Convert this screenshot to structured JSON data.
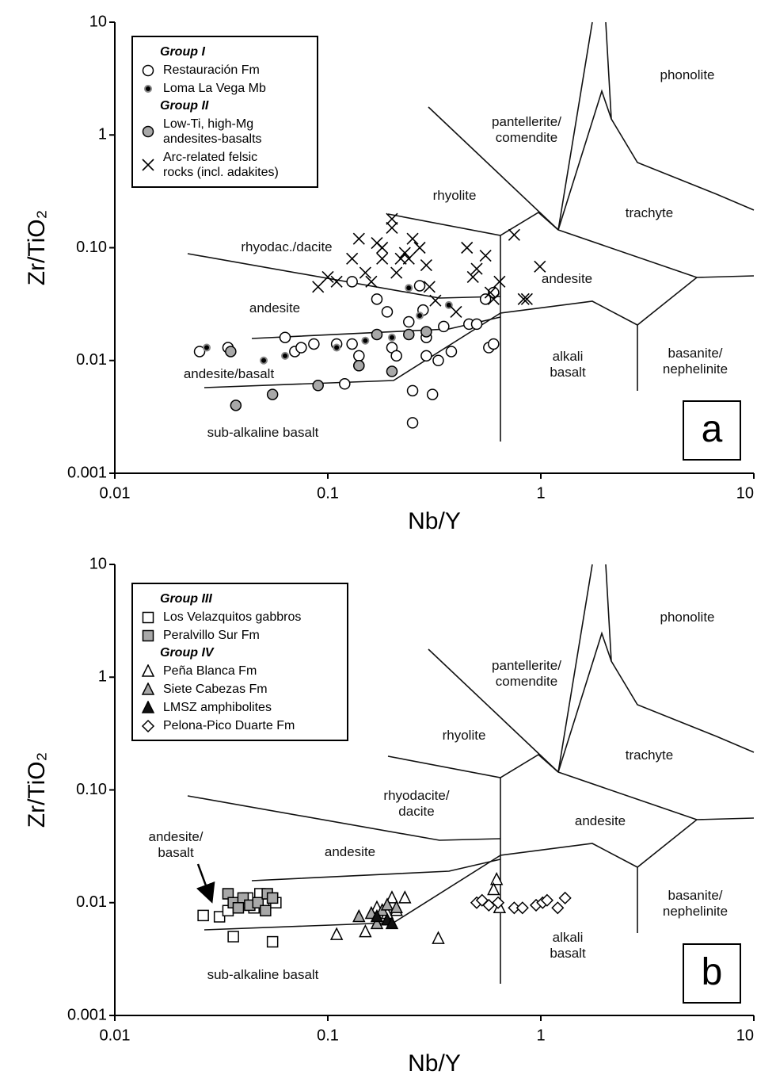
{
  "chart_data": [
    {
      "type": "scatter",
      "panel_label": "a",
      "xlabel": "Nb/Y",
      "ylabel": "Zr/TiO₂",
      "log_x": true,
      "log_y": true,
      "xlim": [
        0.01,
        10
      ],
      "ylim": [
        0.001,
        10
      ],
      "xticks": [
        0.01,
        0.1,
        1,
        10
      ],
      "yticks": [
        0.001,
        0.01,
        {
          "value": 0.1,
          "label": "0.10"
        },
        1,
        10
      ],
      "fields": [
        "phonolite",
        "pantellerite/\ncomendite",
        "rhyolite",
        "trachyte",
        "rhyodac./dacite",
        "andesite",
        "andesite",
        "alkali\nbasalt",
        "basanite/\nnephelinite",
        "andesite/basalt",
        "sub-alkaline basalt"
      ],
      "series": [
        {
          "name": "Restauración Fm",
          "group": "Group I",
          "marker": "circle",
          "color": "#ffffff",
          "x": [
            0.025,
            0.034,
            0.063,
            0.07,
            0.075,
            0.086,
            0.11,
            0.13,
            0.14,
            0.14,
            0.13,
            0.17,
            0.19,
            0.2,
            0.21,
            0.24,
            0.25,
            0.25,
            0.27,
            0.28,
            0.29,
            0.29,
            0.31,
            0.33,
            0.35,
            0.38,
            0.46,
            0.5,
            0.57,
            0.6,
            0.55,
            0.6,
            0.12
          ],
          "y": [
            0.012,
            0.013,
            0.016,
            0.012,
            0.013,
            0.014,
            0.014,
            0.014,
            0.011,
            0.009,
            0.05,
            0.035,
            0.027,
            0.013,
            0.011,
            0.022,
            0.0054,
            0.0028,
            0.046,
            0.028,
            0.016,
            0.011,
            0.005,
            0.01,
            0.02,
            0.012,
            0.021,
            0.021,
            0.013,
            0.014,
            0.035,
            0.04,
            0.0062
          ]
        },
        {
          "name": "Loma La Vega Mb",
          "group": "Group I",
          "marker": "dot",
          "color": "#000000",
          "x": [
            0.027,
            0.05,
            0.063,
            0.11,
            0.15,
            0.24,
            0.27,
            0.37,
            0.2
          ],
          "y": [
            0.013,
            0.01,
            0.011,
            0.013,
            0.015,
            0.044,
            0.025,
            0.031,
            0.016
          ]
        },
        {
          "name": "Low-Ti, high-Mg\nandesites-basalts",
          "group": "Group II",
          "marker": "circle",
          "color": "#a8a8a8",
          "x": [
            0.037,
            0.055,
            0.09,
            0.035,
            0.14,
            0.17,
            0.24,
            0.2,
            0.29
          ],
          "y": [
            0.004,
            0.005,
            0.006,
            0.012,
            0.009,
            0.017,
            0.017,
            0.008,
            0.018
          ]
        },
        {
          "name": "Arc-related felsic\nrocks (incl. adakites)",
          "group": "Group II",
          "marker": "cross",
          "color": "#000000",
          "x": [
            0.09,
            0.1,
            0.11,
            0.13,
            0.14,
            0.15,
            0.17,
            0.18,
            0.18,
            0.2,
            0.2,
            0.21,
            0.22,
            0.23,
            0.24,
            0.25,
            0.27,
            0.29,
            0.3,
            0.32,
            0.45,
            0.48,
            0.5,
            0.55,
            0.58,
            0.6,
            0.64,
            0.75,
            0.83,
            0.86,
            0.99,
            0.4,
            0.16
          ],
          "y": [
            0.045,
            0.055,
            0.05,
            0.08,
            0.12,
            0.06,
            0.11,
            0.1,
            0.08,
            0.18,
            0.15,
            0.06,
            0.08,
            0.09,
            0.08,
            0.12,
            0.1,
            0.07,
            0.045,
            0.034,
            0.1,
            0.055,
            0.065,
            0.085,
            0.04,
            0.035,
            0.05,
            0.13,
            0.035,
            0.035,
            0.068,
            0.027,
            0.05
          ]
        }
      ]
    },
    {
      "type": "scatter",
      "panel_label": "b",
      "xlabel": "Nb/Y",
      "ylabel": "Zr/TiO₂",
      "log_x": true,
      "log_y": true,
      "xlim": [
        0.01,
        10
      ],
      "ylim": [
        0.001,
        10
      ],
      "xticks": [
        0.01,
        0.1,
        1,
        10
      ],
      "yticks": [
        0.001,
        0.01,
        {
          "value": 0.1,
          "label": "0.10"
        },
        1,
        10
      ],
      "fields": [
        "phonolite",
        "pantellerite/\ncomendite",
        "rhyolite",
        "trachyte",
        "rhyodacite/\ndacite",
        "andesite",
        "andesite",
        "alkali\nbasalt",
        "basanite/\nnephelinite",
        "andesite/\nbasalt",
        "sub-alkaline basalt"
      ],
      "series": [
        {
          "name": "Los Velazquitos gabbros",
          "group": "Group III",
          "marker": "square",
          "color": "#ffffff",
          "x": [
            0.026,
            0.031,
            0.034,
            0.036,
            0.055,
            0.04,
            0.045,
            0.05,
            0.055,
            0.057,
            0.048,
            0.042
          ],
          "y": [
            0.0077,
            0.0075,
            0.0085,
            0.005,
            0.0045,
            0.01,
            0.009,
            0.01,
            0.011,
            0.01,
            0.012,
            0.011
          ]
        },
        {
          "name": "Peralvillo Sur Fm",
          "group": "Group III",
          "marker": "square",
          "color": "#a8a8a8",
          "x": [
            0.034,
            0.036,
            0.04,
            0.043,
            0.047,
            0.051,
            0.052,
            0.055,
            0.038
          ],
          "y": [
            0.012,
            0.01,
            0.011,
            0.0095,
            0.01,
            0.0085,
            0.012,
            0.011,
            0.009
          ]
        },
        {
          "name": "Peña Blanca Fm",
          "group": "Group IV",
          "marker": "triangle",
          "color": "#ffffff",
          "x": [
            0.11,
            0.15,
            0.33,
            0.17,
            0.2,
            0.23,
            0.19,
            0.62,
            0.64,
            0.6,
            0.21
          ],
          "y": [
            0.0052,
            0.0055,
            0.0048,
            0.009,
            0.011,
            0.011,
            0.008,
            0.016,
            0.009,
            0.013,
            0.0085
          ]
        },
        {
          "name": "Siete Cabezas Fm",
          "group": "Group IV",
          "marker": "triangle",
          "color": "#a8a8a8",
          "x": [
            0.14,
            0.16,
            0.18,
            0.19,
            0.21,
            0.17
          ],
          "y": [
            0.0075,
            0.008,
            0.0085,
            0.0095,
            0.009,
            0.0065
          ]
        },
        {
          "name": "LMSZ amphibolites",
          "group": "Group IV",
          "marker": "triangle",
          "color": "#111111",
          "x": [
            0.19,
            0.2,
            0.17
          ],
          "y": [
            0.007,
            0.0065,
            0.0075
          ]
        },
        {
          "name": "Pelona-Pico Duarte Fm",
          "group": "Group IV",
          "marker": "diamond",
          "color": "#ffffff",
          "x": [
            0.5,
            0.53,
            0.57,
            0.63,
            0.75,
            0.82,
            0.95,
            1.02,
            1.07,
            1.2,
            1.3
          ],
          "y": [
            0.01,
            0.0105,
            0.0095,
            0.01,
            0.009,
            0.009,
            0.0095,
            0.01,
            0.0105,
            0.009,
            0.011
          ]
        }
      ]
    }
  ]
}
